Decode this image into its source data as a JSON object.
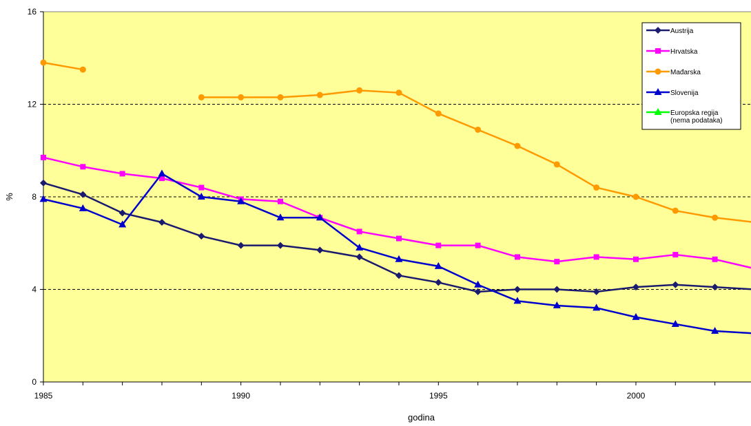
{
  "chart_data": {
    "type": "line",
    "xlabel": "godina",
    "ylabel": "%",
    "xlim": [
      1985,
      2003
    ],
    "ylim": [
      0,
      16
    ],
    "x_ticks": [
      1985,
      1990,
      1995,
      2000
    ],
    "y_ticks": [
      0,
      4,
      8,
      12,
      16
    ],
    "grid": "horizontal dashed",
    "legend_position": "top-right",
    "plot_background": "#FFFF99",
    "series": [
      {
        "name": "Austrija",
        "color": "#1a1a6e",
        "marker": "diamond",
        "points": [
          [
            1985,
            8.6
          ],
          [
            1986,
            8.1
          ],
          [
            1987,
            7.3
          ],
          [
            1988,
            6.9
          ],
          [
            1989,
            6.3
          ],
          [
            1990,
            5.9
          ],
          [
            1991,
            5.9
          ],
          [
            1992,
            5.7
          ],
          [
            1993,
            5.4
          ],
          [
            1994,
            4.6
          ],
          [
            1995,
            4.3
          ],
          [
            1996,
            3.9
          ],
          [
            1997,
            4.0
          ],
          [
            1998,
            4.0
          ],
          [
            1999,
            3.9
          ],
          [
            2000,
            4.1
          ],
          [
            2001,
            4.2
          ],
          [
            2002,
            4.1
          ],
          [
            2003,
            4.0
          ]
        ]
      },
      {
        "name": "Hrvatska",
        "color": "#ff00ff",
        "marker": "square",
        "points": [
          [
            1985,
            9.7
          ],
          [
            1986,
            9.3
          ],
          [
            1987,
            9.0
          ],
          [
            1988,
            8.8
          ],
          [
            1989,
            8.4
          ],
          [
            1990,
            7.9
          ],
          [
            1991,
            7.8
          ],
          [
            1992,
            7.1
          ],
          [
            1993,
            6.5
          ],
          [
            1994,
            6.2
          ],
          [
            1995,
            5.9
          ],
          [
            1996,
            5.9
          ],
          [
            1997,
            5.4
          ],
          [
            1998,
            5.2
          ],
          [
            1999,
            5.4
          ],
          [
            2000,
            5.3
          ],
          [
            2001,
            5.5
          ],
          [
            2002,
            5.3
          ],
          [
            2003,
            4.9
          ]
        ]
      },
      {
        "name": "Mađarska",
        "color": "#ff9900",
        "marker": "circle",
        "segments": [
          [
            [
              1985,
              13.8
            ],
            [
              1986,
              13.5
            ]
          ],
          [
            [
              1989,
              12.3
            ],
            [
              1990,
              12.3
            ],
            [
              1991,
              12.3
            ],
            [
              1992,
              12.4
            ],
            [
              1993,
              12.6
            ],
            [
              1994,
              12.5
            ],
            [
              1995,
              11.6
            ],
            [
              1996,
              10.9
            ],
            [
              1997,
              10.2
            ],
            [
              1998,
              9.4
            ],
            [
              1999,
              8.4
            ],
            [
              2000,
              8.0
            ],
            [
              2001,
              7.4
            ],
            [
              2002,
              7.1
            ],
            [
              2003,
              6.9
            ]
          ]
        ]
      },
      {
        "name": "Slovenija",
        "color": "#0000cc",
        "marker": "triangle",
        "points": [
          [
            1985,
            7.9
          ],
          [
            1986,
            7.5
          ],
          [
            1987,
            6.8
          ],
          [
            1988,
            9.0
          ],
          [
            1989,
            8.0
          ],
          [
            1990,
            7.8
          ],
          [
            1991,
            7.1
          ],
          [
            1992,
            7.1
          ],
          [
            1993,
            5.8
          ],
          [
            1994,
            5.3
          ],
          [
            1995,
            5.0
          ],
          [
            1996,
            4.2
          ],
          [
            1997,
            3.5
          ],
          [
            1998,
            3.3
          ],
          [
            1999,
            3.2
          ],
          [
            2000,
            2.8
          ],
          [
            2001,
            2.5
          ],
          [
            2002,
            2.2
          ],
          [
            2003,
            2.1
          ]
        ]
      },
      {
        "name": "Europska regija (nema podataka)",
        "legend_lines": [
          "Europska regija",
          "(nema podataka)"
        ],
        "color": "#00ff00",
        "marker": "triangle",
        "points": []
      }
    ]
  }
}
